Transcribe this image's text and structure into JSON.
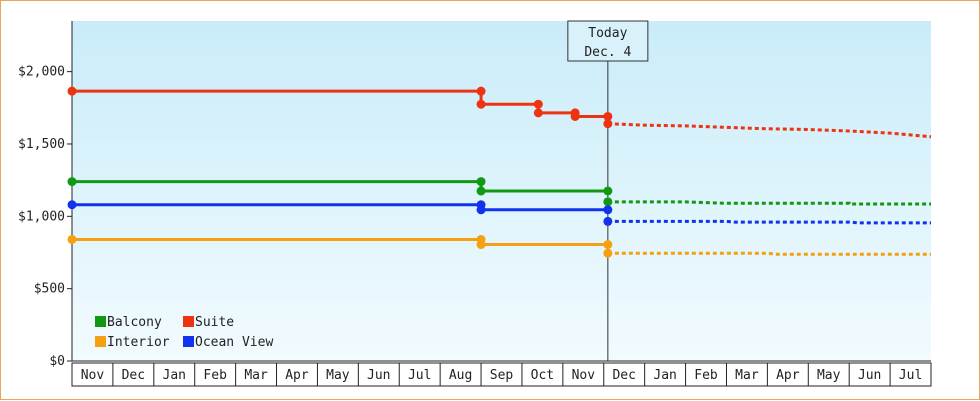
{
  "chart_data": {
    "type": "line",
    "subtype": "step",
    "title": "",
    "xlabel": "",
    "ylabel": "",
    "ylim": [
      0,
      2350
    ],
    "yticks": [
      {
        "value": 0,
        "label": "$0"
      },
      {
        "value": 500,
        "label": "$500"
      },
      {
        "value": 1000,
        "label": "$1,000"
      },
      {
        "value": 1500,
        "label": "$1,500"
      },
      {
        "value": 2000,
        "label": "$2,000"
      }
    ],
    "months": [
      "Nov",
      "Dec",
      "Jan",
      "Feb",
      "Mar",
      "Apr",
      "May",
      "Jun",
      "Jul",
      "Aug",
      "Sep",
      "Oct",
      "Nov",
      "Dec",
      "Jan",
      "Feb",
      "Mar",
      "Apr",
      "May",
      "Jun",
      "Jul"
    ],
    "today": {
      "line1": "Today",
      "line2": "Dec. 4",
      "month_position": 13.1
    },
    "legend": {
      "placement": "bottom-left"
    },
    "grid": false,
    "series": [
      {
        "name": "Balcony",
        "color": "#119911",
        "segments": [
          {
            "x0": 0,
            "x1": 10.0,
            "y": 1240
          },
          {
            "x0": 10.0,
            "x1": 13.1,
            "y": 1175
          }
        ],
        "markers": [
          [
            0,
            1240
          ],
          [
            10.0,
            1240
          ],
          [
            10.0,
            1175
          ],
          [
            13.1,
            1175
          ],
          [
            13.1,
            1100
          ]
        ],
        "forecast": [
          [
            13.1,
            1100
          ],
          [
            15.0,
            1100
          ],
          [
            16.0,
            1090
          ],
          [
            19.0,
            1090
          ],
          [
            19.0,
            1085
          ],
          [
            21.0,
            1085
          ]
        ]
      },
      {
        "name": "Suite",
        "color": "#ee3311",
        "segments": [
          {
            "x0": 0,
            "x1": 10.0,
            "y": 1865
          },
          {
            "x0": 10.0,
            "x1": 11.4,
            "y": 1775
          },
          {
            "x0": 11.4,
            "x1": 12.3,
            "y": 1715
          },
          {
            "x0": 12.3,
            "x1": 13.1,
            "y": 1690
          }
        ],
        "markers": [
          [
            0,
            1865
          ],
          [
            10.0,
            1865
          ],
          [
            10.0,
            1775
          ],
          [
            11.4,
            1775
          ],
          [
            11.4,
            1715
          ],
          [
            12.3,
            1715
          ],
          [
            12.3,
            1690
          ],
          [
            13.1,
            1690
          ],
          [
            13.1,
            1640
          ]
        ],
        "forecast": [
          [
            13.1,
            1640
          ],
          [
            14.0,
            1630
          ],
          [
            15.0,
            1625
          ],
          [
            16.0,
            1615
          ],
          [
            17.0,
            1605
          ],
          [
            18.0,
            1600
          ],
          [
            19.0,
            1590
          ],
          [
            20.0,
            1575
          ],
          [
            21.0,
            1550
          ]
        ]
      },
      {
        "name": "Interior",
        "color": "#f5a010",
        "segments": [
          {
            "x0": 0,
            "x1": 10.0,
            "y": 840
          },
          {
            "x0": 10.0,
            "x1": 13.1,
            "y": 805
          }
        ],
        "markers": [
          [
            0,
            840
          ],
          [
            10.0,
            840
          ],
          [
            10.0,
            805
          ],
          [
            13.1,
            805
          ],
          [
            13.1,
            745
          ]
        ],
        "forecast": [
          [
            13.1,
            745
          ],
          [
            17.0,
            745
          ],
          [
            17.2,
            738
          ],
          [
            21.0,
            738
          ]
        ]
      },
      {
        "name": "Ocean View",
        "color": "#1133ee",
        "segments": [
          {
            "x0": 0,
            "x1": 10.0,
            "y": 1080
          },
          {
            "x0": 10.0,
            "x1": 13.1,
            "y": 1045
          }
        ],
        "markers": [
          [
            0,
            1080
          ],
          [
            10.0,
            1080
          ],
          [
            10.0,
            1045
          ],
          [
            13.1,
            1045
          ],
          [
            13.1,
            965
          ]
        ],
        "forecast": [
          [
            13.1,
            965
          ],
          [
            16.0,
            965
          ],
          [
            16.2,
            960
          ],
          [
            19.0,
            960
          ],
          [
            19.2,
            955
          ],
          [
            21.0,
            955
          ]
        ]
      }
    ]
  }
}
